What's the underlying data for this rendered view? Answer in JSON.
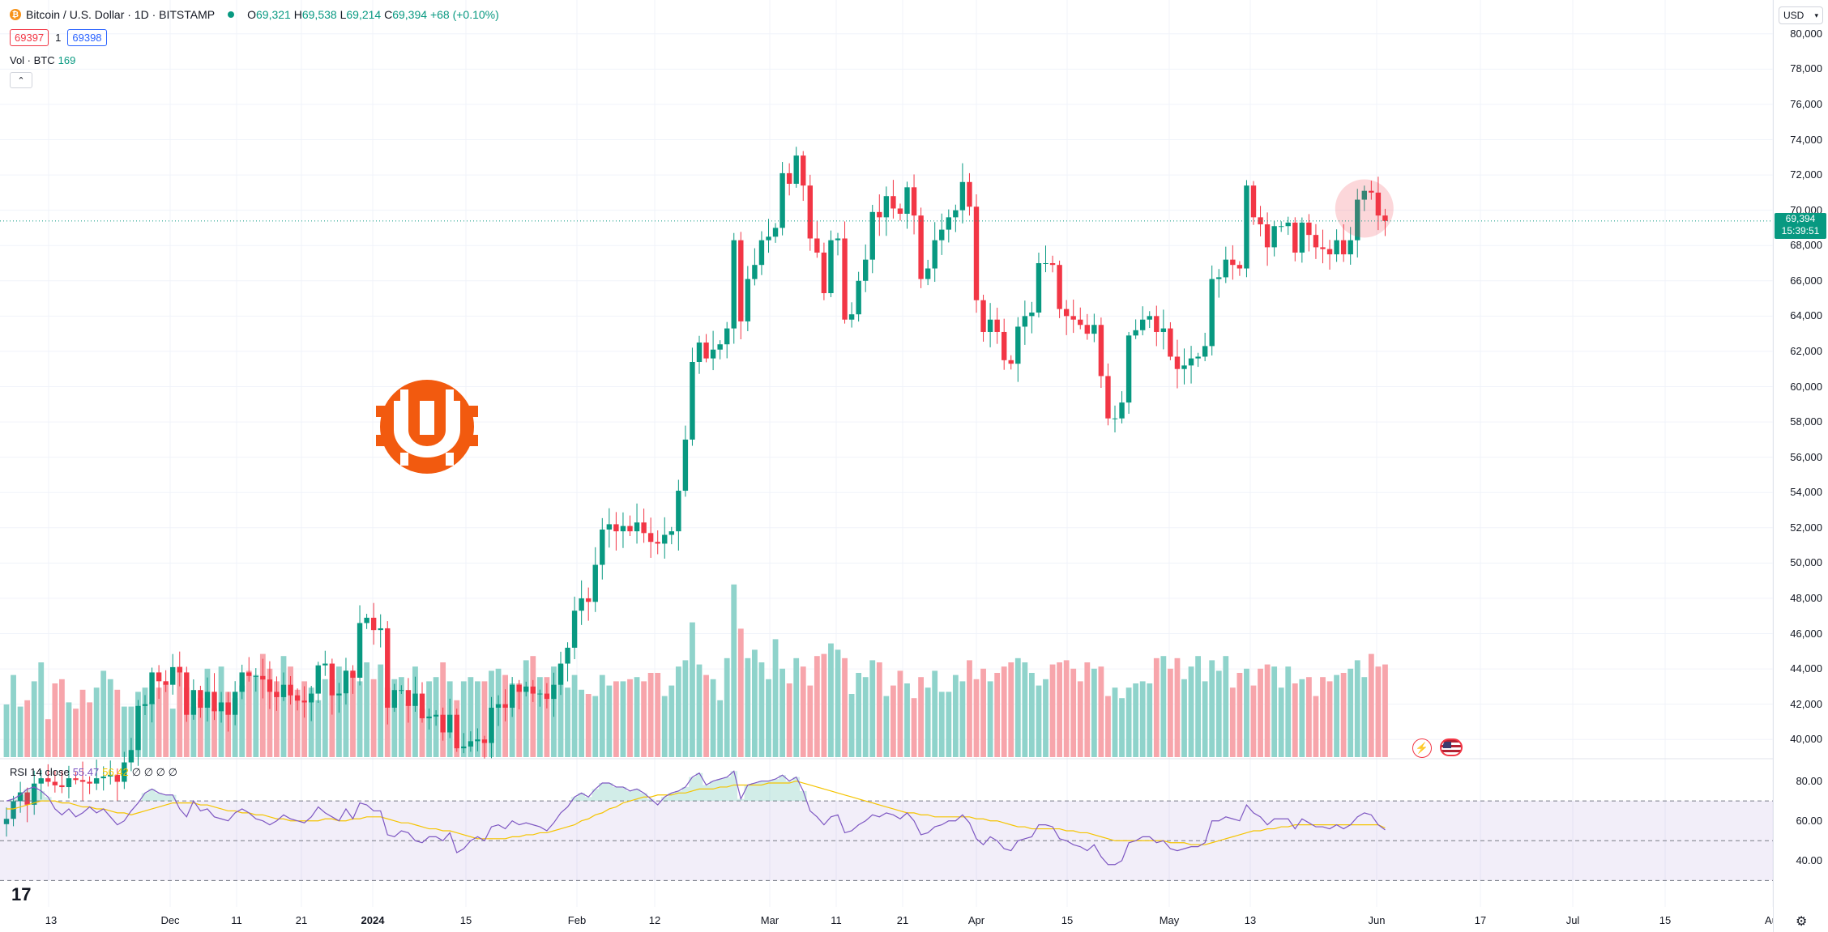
{
  "symbol": {
    "coin_icon": "bitcoin-icon",
    "title": "Bitcoin / U.S. Dollar · 1D · BITSTAMP",
    "ohlc": {
      "o_label": "O",
      "o": "69,321",
      "h_label": "H",
      "h": "69,538",
      "l_label": "L",
      "l": "69,214",
      "c_label": "C",
      "c": "69,394",
      "change": "+68 (+0.10%)"
    }
  },
  "trade": {
    "sell_price": "69397",
    "spread": "1",
    "buy_price": "69398"
  },
  "volume": {
    "label": "Vol · BTC",
    "value": "169"
  },
  "rsi": {
    "label": "RSI 14 close",
    "value": "55.47",
    "ma": "56.42",
    "extra": "∅ ∅ ∅ ∅"
  },
  "currency": {
    "label": "USD"
  },
  "last_price": {
    "price": "69,394",
    "countdown": "15:39:51"
  },
  "price_axis": [
    "80,000",
    "78,000",
    "76,000",
    "74,000",
    "72,000",
    "70,000",
    "68,000",
    "66,000",
    "64,000",
    "62,000",
    "60,000",
    "58,000",
    "56,000",
    "54,000",
    "52,000",
    "50,000",
    "48,000",
    "46,000",
    "44,000",
    "42,000",
    "40,000"
  ],
  "rsi_axis": [
    "80.00",
    "60.00",
    "40.00"
  ],
  "time_axis": [
    {
      "t": "13",
      "bold": false
    },
    {
      "t": "Dec",
      "bold": false
    },
    {
      "t": "11",
      "bold": false
    },
    {
      "t": "21",
      "bold": false
    },
    {
      "t": "2024",
      "bold": true
    },
    {
      "t": "15",
      "bold": false
    },
    {
      "t": "Feb",
      "bold": false
    },
    {
      "t": "12",
      "bold": false
    },
    {
      "t": "Mar",
      "bold": false
    },
    {
      "t": "11",
      "bold": false
    },
    {
      "t": "21",
      "bold": false
    },
    {
      "t": "Apr",
      "bold": false
    },
    {
      "t": "15",
      "bold": false
    },
    {
      "t": "May",
      "bold": false
    },
    {
      "t": "13",
      "bold": false
    },
    {
      "t": "Jun",
      "bold": false
    },
    {
      "t": "17",
      "bold": false
    },
    {
      "t": "Jul",
      "bold": false
    },
    {
      "t": "15",
      "bold": false
    },
    {
      "t": "Au",
      "bold": false
    }
  ],
  "branding": {
    "tv_logo": "17"
  },
  "colors": {
    "up": "#089981",
    "down": "#f23645",
    "rsi_line": "#7e57c2",
    "rsi_ma": "#f5c400",
    "volume_up": "#8fd3cb",
    "volume_down": "#f7a5ab"
  },
  "chart_data": {
    "type": "candlestick",
    "interval": "1D",
    "y_range": [
      39000,
      81000
    ],
    "rsi_range": [
      20,
      90
    ],
    "closes": [
      35500,
      36500,
      37000,
      36300,
      37500,
      37800,
      37600,
      37400,
      37300,
      37800,
      37700,
      37600,
      37500,
      37800,
      37900,
      38000,
      37600,
      38700,
      39400,
      41900,
      42000,
      43800,
      43300,
      43100,
      44100,
      43800,
      41400,
      42800,
      41800,
      42700,
      41600,
      42100,
      41400,
      42700,
      43800,
      43600,
      43600,
      43400,
      42700,
      42400,
      43100,
      42500,
      42200,
      42100,
      42600,
      44200,
      44300,
      42500,
      42600,
      43900,
      43500,
      46600,
      46900,
      46200,
      46300,
      41800,
      42800,
      42800,
      41900,
      42600,
      41200,
      41300,
      41400,
      40400,
      41400,
      39500,
      39600,
      39900,
      40000,
      39800,
      41800,
      42000,
      41800,
      43100,
      42700,
      43000,
      42600,
      42600,
      42300,
      43100,
      44300,
      45200,
      47300,
      48000,
      47800,
      49900,
      51900,
      52200,
      51800,
      52100,
      51800,
      52300,
      51700,
      51200,
      51100,
      51600,
      51800,
      54100,
      57000,
      61400,
      62500,
      61600,
      62100,
      62400,
      63300,
      68300,
      63700,
      66100,
      66900,
      68300,
      68500,
      69000,
      72100,
      71500,
      73100,
      71400,
      68400,
      67600,
      65300,
      68300,
      68400,
      63800,
      64100,
      66000,
      67200,
      69900,
      69600,
      70800,
      70100,
      69800,
      71300,
      69700,
      66100,
      66700,
      68300,
      68900,
      69600,
      70000,
      71600,
      70200,
      64900,
      63100,
      63800,
      63100,
      61500,
      61300,
      63400,
      64000,
      64200,
      67000,
      67000,
      66900,
      64400,
      64000,
      63800,
      63500,
      63000,
      63500,
      60600,
      58200,
      58200,
      59100,
      62900,
      63200,
      63800,
      64000,
      63100,
      63300,
      61700,
      61000,
      61200,
      61600,
      61700,
      62300,
      66100,
      66200,
      67200,
      66900,
      66700,
      71400,
      69600,
      69200,
      67900,
      69100,
      69100,
      69300,
      67600,
      69300,
      68600,
      67900,
      67800,
      67500,
      68300,
      67500,
      68300,
      70600,
      71100,
      71000,
      69700,
      69394
    ],
    "rsi_values": [
      70,
      71,
      73,
      76,
      77,
      75,
      72,
      66,
      63,
      66,
      62,
      64,
      67,
      64,
      66,
      62,
      58,
      60,
      65,
      69,
      74,
      76,
      74,
      73,
      73,
      66,
      62,
      70,
      65,
      66,
      62,
      61,
      60,
      64,
      66,
      64,
      61,
      60,
      58,
      60,
      63,
      61,
      60,
      59,
      62,
      67,
      64,
      62,
      60,
      66,
      61,
      69,
      68,
      65,
      65,
      53,
      52,
      55,
      54,
      50,
      49,
      52,
      52,
      50,
      54,
      44,
      46,
      50,
      52,
      50,
      57,
      58,
      56,
      60,
      58,
      59,
      58,
      57,
      55,
      59,
      64,
      67,
      72,
      74,
      72,
      76,
      79,
      79,
      77,
      77,
      75,
      76,
      74,
      71,
      68,
      72,
      74,
      75,
      77,
      82,
      84,
      78,
      80,
      81,
      82,
      85,
      71,
      78,
      79,
      80,
      80,
      81,
      83,
      80,
      82,
      75,
      65,
      62,
      58,
      62,
      63,
      54,
      55,
      58,
      60,
      63,
      62,
      64,
      63,
      61,
      64,
      60,
      53,
      54,
      57,
      58,
      60,
      60,
      63,
      59,
      51,
      48,
      52,
      50,
      46,
      45,
      50,
      51,
      52,
      58,
      58,
      57,
      51,
      50,
      48,
      47,
      45,
      48,
      42,
      38,
      38,
      40,
      49,
      50,
      52,
      52,
      49,
      50,
      46,
      45,
      46,
      47,
      47,
      49,
      60,
      60,
      62,
      61,
      60,
      68,
      64,
      62,
      58,
      61,
      61,
      61,
      56,
      61,
      59,
      57,
      57,
      56,
      58,
      56,
      58,
      62,
      64,
      63,
      58,
      55.47
    ],
    "rsi_ma_values": [
      66,
      66,
      67,
      68,
      69,
      70,
      70,
      70,
      69,
      69,
      68,
      67,
      67,
      66,
      66,
      65,
      64,
      64,
      63,
      64,
      65,
      66,
      67,
      68,
      69,
      69,
      69,
      69,
      68,
      68,
      67,
      66,
      65,
      65,
      64,
      64,
      63,
      63,
      62,
      61,
      61,
      60,
      60,
      60,
      60,
      60,
      61,
      61,
      60,
      60,
      61,
      61,
      62,
      62,
      62,
      61,
      60,
      59,
      59,
      58,
      57,
      56,
      56,
      55,
      55,
      54,
      53,
      52,
      51,
      51,
      51,
      51,
      51,
      52,
      52,
      53,
      53,
      54,
      54,
      55,
      56,
      57,
      58,
      60,
      61,
      63,
      64,
      66,
      67,
      69,
      70,
      71,
      72,
      72,
      73,
      73,
      73,
      74,
      74,
      75,
      76,
      76,
      76,
      77,
      77,
      78,
      78,
      78,
      78,
      78,
      79,
      79,
      79,
      79,
      80,
      79,
      78,
      77,
      76,
      75,
      74,
      73,
      72,
      71,
      70,
      69,
      68,
      67,
      66,
      65,
      64,
      64,
      63,
      63,
      62,
      62,
      62,
      62,
      62,
      62,
      61,
      61,
      60,
      60,
      59,
      58,
      57,
      57,
      56,
      56,
      56,
      56,
      56,
      55,
      55,
      54,
      54,
      53,
      52,
      51,
      50,
      50,
      50,
      50,
      50,
      50,
      50,
      50,
      49,
      49,
      49,
      48,
      48,
      48,
      49,
      50,
      51,
      52,
      53,
      54,
      55,
      55,
      56,
      56,
      57,
      57,
      58,
      58,
      58,
      58,
      58,
      58,
      58,
      58,
      58,
      58,
      58,
      58,
      58,
      56.42
    ],
    "volume_levels": [
      25,
      39,
      24,
      27,
      36,
      45,
      18,
      35,
      37,
      26,
      23,
      32,
      26,
      33,
      41,
      37,
      32,
      24,
      24,
      31,
      33,
      26,
      33,
      35,
      23,
      43,
      33,
      24,
      28,
      42,
      23,
      43,
      31,
      28,
      34,
      41,
      39,
      49,
      42,
      36,
      48,
      43,
      32,
      36,
      33,
      27,
      37,
      37,
      43,
      30,
      40,
      36,
      45,
      37,
      44,
      33,
      37,
      38,
      25,
      43,
      23,
      36,
      38,
      45,
      36,
      27,
      36,
      38,
      36,
      36,
      41,
      42,
      39,
      35,
      35,
      46,
      48,
      38,
      38,
      43,
      44,
      33,
      39,
      32,
      30,
      29,
      39,
      34,
      36,
      36,
      37,
      38,
      36,
      40,
      40,
      29,
      34,
      43,
      46,
      64,
      44,
      39,
      37,
      27,
      47,
      82,
      61,
      47,
      51,
      45,
      37,
      56,
      42,
      35,
      47,
      43,
      34,
      48,
      49,
      54,
      51,
      47,
      30,
      40,
      38,
      46,
      45,
      29,
      34,
      41,
      35,
      28,
      38,
      33,
      41,
      31,
      31,
      39,
      36,
      46,
      37,
      42,
      36,
      40,
      43,
      45,
      47,
      45,
      40,
      34,
      37,
      44,
      45,
      46,
      42,
      36,
      45,
      42,
      43,
      29,
      33,
      28,
      33,
      35,
      36,
      35,
      47,
      48,
      42,
      47,
      37,
      43,
      48,
      36,
      46,
      41,
      48,
      33,
      40,
      42,
      34,
      42,
      44,
      43,
      33,
      43,
      35,
      37,
      38,
      29,
      38,
      36,
      39,
      40,
      42,
      46,
      38,
      49,
      43,
      44
    ]
  }
}
